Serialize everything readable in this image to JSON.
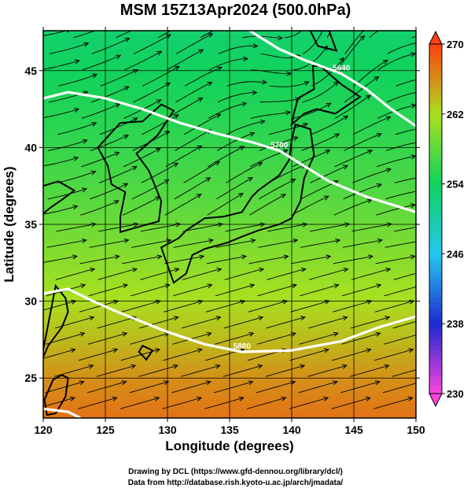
{
  "chart_data": {
    "type": "heatmap",
    "title": "MSM 15Z13Apr2024 (500.0hPa)",
    "xlabel": "Longitude (degrees)",
    "ylabel": "Latitude  (degrees)",
    "xlim": [
      120,
      150
    ],
    "ylim": [
      22.4,
      47.6
    ],
    "x_ticks": [
      120,
      125,
      130,
      135,
      140,
      145,
      150
    ],
    "y_ticks": [
      25,
      30,
      35,
      40,
      45
    ],
    "colorbar": {
      "min": 230,
      "max": 270,
      "ticks": [
        230,
        238,
        246,
        254,
        262,
        270
      ],
      "colors": [
        "#ff44dd",
        "#1c2bd0",
        "#27c8f0",
        "#10d25c",
        "#a8e020",
        "#ff4010"
      ]
    },
    "field_description": "temperature-like field at 500.0hPa; warm (orange) in south, cool (green) in north",
    "gradient_stops": [
      {
        "lat": 22.4,
        "value": 267.5
      },
      {
        "lat": 25.0,
        "value": 266.0
      },
      {
        "lat": 28.0,
        "value": 263.5
      },
      {
        "lat": 31.0,
        "value": 261.5
      },
      {
        "lat": 34.0,
        "value": 259.5
      },
      {
        "lat": 37.0,
        "value": 257.5
      },
      {
        "lat": 41.0,
        "value": 255.5
      },
      {
        "lat": 45.0,
        "value": 254.0
      },
      {
        "lat": 47.6,
        "value": 253.0
      }
    ],
    "contours": [
      {
        "label": "5880",
        "points": [
          [
            120,
            30.5
          ],
          [
            122,
            30.8
          ],
          [
            124,
            30.0
          ],
          [
            126,
            29.3
          ],
          [
            130,
            28.0
          ],
          [
            133,
            27.2
          ],
          [
            136,
            26.7
          ],
          [
            140,
            26.8
          ],
          [
            144,
            27.4
          ],
          [
            147,
            28.3
          ],
          [
            150,
            29.0
          ]
        ]
      },
      {
        "label": "5700",
        "points": [
          [
            120,
            43.2
          ],
          [
            122,
            43.6
          ],
          [
            125,
            43.2
          ],
          [
            128,
            42.5
          ],
          [
            131,
            41.6
          ],
          [
            134,
            40.9
          ],
          [
            137,
            40.3
          ],
          [
            139,
            39.8
          ],
          [
            141,
            38.8
          ],
          [
            143,
            37.8
          ],
          [
            146,
            36.8
          ],
          [
            150,
            35.8
          ]
        ]
      },
      {
        "label": "5640",
        "points": [
          [
            135,
            48.5
          ],
          [
            137,
            47.4
          ],
          [
            139,
            46.4
          ],
          [
            141,
            45.7
          ],
          [
            143,
            45.1
          ],
          [
            144,
            44.8
          ],
          [
            146,
            43.8
          ],
          [
            148,
            42.5
          ],
          [
            150,
            41.4
          ]
        ]
      },
      {
        "label": "",
        "points": [
          [
            120,
            23.0
          ],
          [
            122,
            22.8
          ],
          [
            123,
            22.4
          ]
        ]
      }
    ],
    "wind_field": "westerly flow; southwesterly over Japan and south, cyclonic curvature near 140E 45N"
  },
  "credits": {
    "line1": "Drawing by DCL (https://www.gfd-dennou.org/library/dcl/)",
    "line2": "Data from http://database.rish.kyoto-u.ac.jp/arch/jmadata/"
  }
}
